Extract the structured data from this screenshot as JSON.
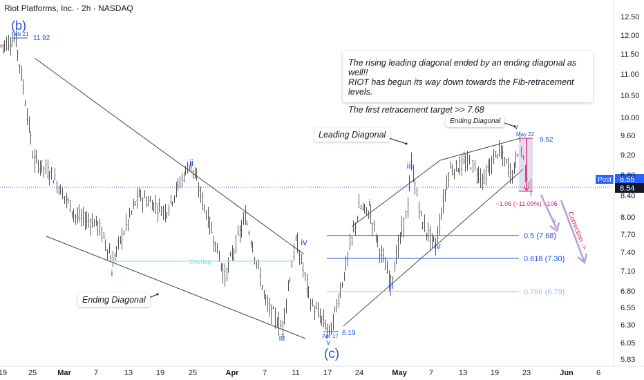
{
  "header": {
    "title": "Riot Platforms, Inc. · 2h · NASDAQ"
  },
  "annotations": {
    "note_line1": "The rising leading diagonal ended by an ending diagonal as well!!",
    "note_line2": "RIOT has begun its way down towards the Fib-retracement levels.",
    "note_line3": "The first retracement target >> 7.68",
    "leading_diagonal": "Leading Diagonal",
    "ending_diagonal_left": "Ending Diagonal",
    "ending_diagonal_right": "Ending Diagonal",
    "overlap": "Overlap",
    "correction": "Correction ->",
    "arrow_small": "->"
  },
  "chart_data": {
    "type": "candlestick",
    "title": "Riot Platforms, Inc. · 2h · NASDAQ",
    "y_ticks": [
      "12.50",
      "12.00",
      "11.50",
      "11.00",
      "10.50",
      "10.00",
      "9.60",
      "9.20",
      "8.80",
      "8.40",
      "8.00",
      "7.70",
      "7.40",
      "7.10",
      "6.80",
      "6.55",
      "6.30",
      "6.05",
      "5.83"
    ],
    "x_ticks": [
      "19",
      "25",
      "Mar",
      "7",
      "13",
      "19",
      "25",
      "Apr",
      "7",
      "11",
      "17",
      "24",
      "May",
      "7",
      "13",
      "19",
      "23",
      "Jun",
      "6"
    ],
    "ylim": [
      5.8,
      12.75
    ],
    "scale": "log",
    "last_price": {
      "label": "Post",
      "value": "8.55",
      "line_value": "8.54"
    },
    "wave_labels": [
      {
        "text": "(b)",
        "date": "Feb 21",
        "price": 11.92,
        "price_label": "11.92"
      },
      {
        "text": "i",
        "price": 7.2
      },
      {
        "text": "ii",
        "price": 9.1
      },
      {
        "text": "iii",
        "price": 6.08
      },
      {
        "text": "iv",
        "price": 7.75
      },
      {
        "text": "v",
        "date": "Apr 17",
        "price": 6.19,
        "price_label": "6.19"
      },
      {
        "text": "(c)",
        "price": 5.95
      },
      {
        "text": "i",
        "price": 8.35
      },
      {
        "text": "ii",
        "price": 6.9
      },
      {
        "text": "iii",
        "price": 9.0
      },
      {
        "text": "iv",
        "price": 7.45
      },
      {
        "text": "v",
        "date": "May 22",
        "price": 9.52,
        "price_label": "9.52"
      }
    ],
    "fib_levels": [
      {
        "label": "0.5 (7.68)",
        "value": 7.68,
        "color": "#1e53e5"
      },
      {
        "label": "0.618 (7.30)",
        "value": 7.3,
        "color": "#1e53e5"
      },
      {
        "label": "0.786 (6.79)",
        "value": 6.79,
        "color": "#90bff9"
      }
    ],
    "measure": {
      "text": "−1.06 (−11.09%) −106",
      "color": "#e91e63"
    },
    "colors": {
      "candle": "#555555",
      "wave": "#1e53e5",
      "diagonal": "#444444",
      "overlap": "#80deea",
      "arrow": "#b39ddb",
      "last_price": "#2962ff"
    }
  }
}
